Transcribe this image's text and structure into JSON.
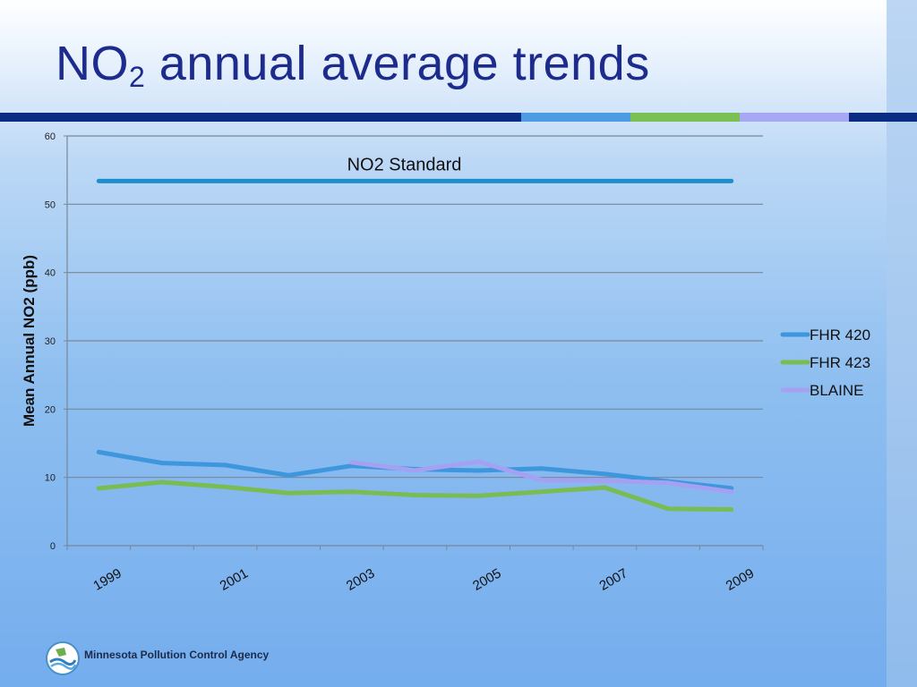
{
  "slide": {
    "title_main": "NO",
    "title_sub": "2",
    "title_rest": " annual average trends",
    "footer": "Minnesota Pollution Control Agency"
  },
  "colors": {
    "title": "#1c2b8c",
    "bar_navy": "#0b2c83",
    "bar_blue": "#4d9be0",
    "bar_green": "#7cbf53",
    "bar_purple": "#a7a8f4"
  },
  "chart_data": {
    "type": "line",
    "title": "",
    "xlabel": "",
    "ylabel": "Mean Annual NO2 (ppb)",
    "ylim": [
      0,
      60
    ],
    "yticks": [
      0,
      10,
      20,
      30,
      40,
      50,
      60
    ],
    "x": [
      1999,
      2000,
      2001,
      2002,
      2003,
      2004,
      2005,
      2006,
      2007,
      2008,
      2009
    ],
    "xtick_labels": [
      "1999",
      "2001",
      "2003",
      "2005",
      "2007",
      "2009"
    ],
    "xtick_years": [
      1999,
      2001,
      2003,
      2005,
      2007,
      2009
    ],
    "grid": true,
    "legend": "right",
    "series": [
      {
        "name": "FHR 420",
        "color": "#3e97dc",
        "values": [
          13.7,
          12.1,
          11.8,
          10.3,
          11.7,
          11.2,
          11.0,
          11.3,
          10.5,
          9.4,
          8.4
        ]
      },
      {
        "name": "FHR 423",
        "color": "#79bd52",
        "values": [
          8.4,
          9.3,
          8.6,
          7.7,
          7.9,
          7.4,
          7.3,
          7.9,
          8.5,
          5.4,
          5.3
        ]
      },
      {
        "name": "BLAINE",
        "color": "#a6a0f3",
        "values": [
          null,
          null,
          null,
          null,
          12.2,
          11.0,
          12.3,
          9.6,
          9.5,
          9.2,
          7.9
        ]
      }
    ],
    "reference_line": {
      "name": "NO2 Standard",
      "value": 53.4,
      "color": "#1e8ecc",
      "x_start": 1999,
      "x_end": 2009
    }
  }
}
